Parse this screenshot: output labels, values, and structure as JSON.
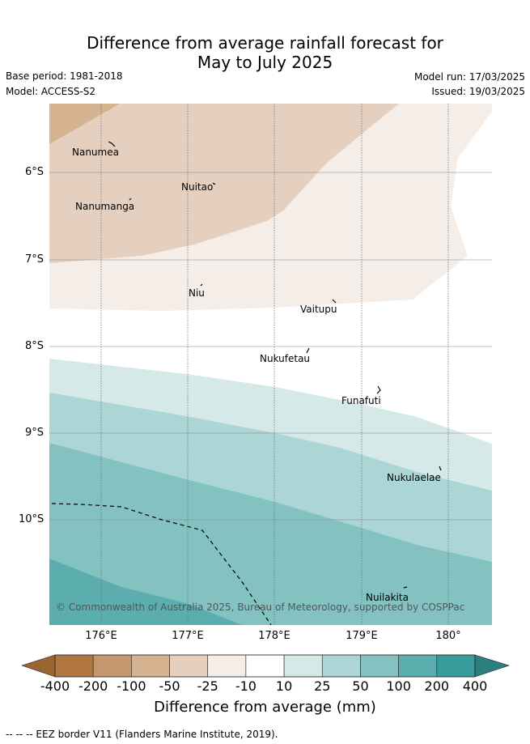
{
  "header": {
    "title_line1": "Difference from average rainfall forecast for",
    "title_line2": "May to July 2025",
    "base_period": "Base period: 1981-2018",
    "model": "Model: ACCESS-S2",
    "model_run": "Model run: 17/03/2025",
    "issued": "Issued: 19/03/2025"
  },
  "map": {
    "lat_labels": [
      "6°S",
      "7°S",
      "8°S",
      "9°S",
      "10°S"
    ],
    "lon_labels": [
      "176°E",
      "177°E",
      "178°E",
      "179°E",
      "180°"
    ],
    "places": [
      {
        "name": "Nanumea"
      },
      {
        "name": "Nuitao"
      },
      {
        "name": "Nanumanga"
      },
      {
        "name": "Niu"
      },
      {
        "name": "Vaitupu"
      },
      {
        "name": "Nukufetau"
      },
      {
        "name": "Funafuti"
      },
      {
        "name": "Nukulaelae"
      },
      {
        "name": "Nuilakita"
      }
    ],
    "copyright": "© Commonwealth of Australia 2025, Bureau of Meteorology, supported by COSPPac"
  },
  "colorbar": {
    "ticks": [
      "-400",
      "-200",
      "-100",
      "-50",
      "-25",
      "-10",
      "10",
      "25",
      "50",
      "100",
      "200",
      "400"
    ],
    "colors": [
      "#b07840",
      "#c4976c",
      "#d5b290",
      "#e5d0bf",
      "#f5ede8",
      "#ffffff",
      "#d5e9e9",
      "#acd6d6",
      "#84c2c2",
      "#5caeae",
      "#369c9c"
    ],
    "low_extend_color": "#9a6530",
    "high_extend_color": "#2e7f7f",
    "label": "Difference from average (mm)"
  },
  "legend": {
    "eez_text": "--  --  -- EEZ border V11 (Flanders Marine Institute, 2019)."
  }
}
